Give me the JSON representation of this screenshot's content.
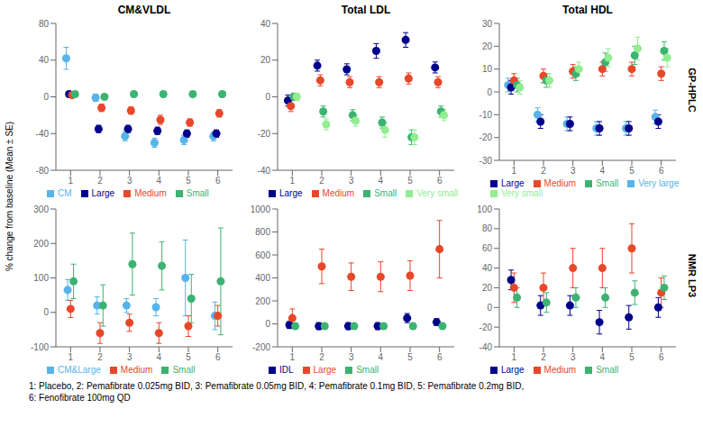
{
  "chart_data": [
    {
      "type": "scatter",
      "title": "CM&VLDL",
      "x": [
        1,
        2,
        3,
        4,
        5,
        6
      ],
      "xlim": [
        0.5,
        6.5
      ],
      "xticks": [
        1,
        2,
        3,
        4,
        5,
        6
      ],
      "ylim": [
        -80,
        80
      ],
      "yticks": [
        -80,
        -40,
        0,
        40,
        80
      ],
      "legend": "bottom",
      "marker": "circle",
      "series": [
        {
          "name": "CM",
          "color": "#56b4e9",
          "values": [
            42,
            -1,
            -43,
            -50,
            -47,
            -43
          ],
          "errors": [
            12,
            4,
            5,
            5,
            5,
            5
          ]
        },
        {
          "name": "Large",
          "color": "#00008b",
          "values": [
            3,
            -35,
            -35,
            -37,
            -40,
            -40
          ],
          "errors": [
            3,
            4,
            4,
            4,
            4,
            4
          ]
        },
        {
          "name": "Medium",
          "color": "#e8472a",
          "values": [
            2,
            -12,
            -15,
            -25,
            -28,
            -18
          ],
          "errors": [
            3,
            4,
            4,
            5,
            4,
            4
          ]
        },
        {
          "name": "Small",
          "color": "#3cb371",
          "values": [
            3,
            0,
            3,
            3,
            3,
            3
          ],
          "errors": [
            3,
            3,
            3,
            3,
            3,
            3
          ]
        }
      ]
    },
    {
      "type": "scatter",
      "title": "Total LDL",
      "x": [
        1,
        2,
        3,
        4,
        5,
        6
      ],
      "xlim": [
        0.5,
        6.5
      ],
      "xticks": [
        1,
        2,
        3,
        4,
        5,
        6
      ],
      "ylim": [
        -40,
        40
      ],
      "yticks": [
        -40,
        -20,
        0,
        20,
        40
      ],
      "legend": "bottom",
      "marker": "circle",
      "series": [
        {
          "name": "Large",
          "color": "#00008b",
          "values": [
            -2,
            17,
            15,
            25,
            31,
            16
          ],
          "errors": [
            3,
            3,
            3,
            4,
            4,
            3
          ]
        },
        {
          "name": "Medium",
          "color": "#e8472a",
          "values": [
            -5,
            9,
            8,
            8,
            10,
            8
          ],
          "errors": [
            3,
            3,
            3,
            3,
            3,
            3
          ]
        },
        {
          "name": "Small",
          "color": "#3cb371",
          "values": [
            0,
            -8,
            -10,
            -14,
            -22,
            -8
          ],
          "errors": [
            2,
            3,
            3,
            3,
            4,
            3
          ]
        },
        {
          "name": "Very small",
          "color": "#90ee90",
          "values": [
            0,
            -15,
            -13,
            -18,
            -22,
            -10
          ],
          "errors": [
            2,
            3,
            3,
            4,
            4,
            3
          ]
        }
      ]
    },
    {
      "type": "scatter",
      "title": "Total HDL",
      "x": [
        1,
        2,
        3,
        4,
        5,
        6
      ],
      "xlim": [
        0.5,
        6.5
      ],
      "xticks": [
        1,
        2,
        3,
        4,
        5,
        6
      ],
      "ylim": [
        -30,
        30
      ],
      "yticks": [
        -30,
        -20,
        -10,
        0,
        10,
        20,
        30
      ],
      "legend": "bottom",
      "marker": "circle",
      "series": [
        {
          "name": "Very large",
          "color": "#56b4e9",
          "values": [
            3,
            -10,
            -14,
            -16,
            -16,
            -11
          ],
          "errors": [
            3,
            3,
            3,
            3,
            3,
            3
          ]
        },
        {
          "name": "Large",
          "color": "#00008b",
          "values": [
            2,
            -13,
            -14,
            -16,
            -16,
            -13
          ],
          "errors": [
            3,
            3,
            3,
            3,
            3,
            3
          ]
        },
        {
          "name": "Medium",
          "color": "#e8472a",
          "values": [
            5,
            7,
            9,
            10,
            10,
            8
          ],
          "errors": [
            3,
            3,
            3,
            3,
            3,
            3
          ]
        },
        {
          "name": "Small",
          "color": "#3cb371",
          "values": [
            3,
            5,
            8,
            13,
            16,
            18
          ],
          "errors": [
            3,
            3,
            3,
            4,
            4,
            4
          ]
        },
        {
          "name": "Very small",
          "color": "#90ee90",
          "values": [
            2,
            5,
            10,
            15,
            19,
            15
          ],
          "errors": [
            3,
            3,
            3,
            4,
            5,
            4
          ]
        }
      ]
    },
    {
      "type": "scatter",
      "x": [
        1,
        2,
        3,
        4,
        5,
        6
      ],
      "xlim": [
        0.5,
        6.5
      ],
      "xticks": [
        1,
        2,
        3,
        4,
        5,
        6
      ],
      "ylim": [
        -100,
        300
      ],
      "yticks": [
        -100,
        0,
        100,
        200,
        300
      ],
      "legend": "bottom",
      "marker": "circle",
      "series": [
        {
          "name": "CM&Large",
          "color": "#56b4e9",
          "values": [
            65,
            20,
            20,
            15,
            100,
            -10
          ],
          "errors": [
            30,
            25,
            20,
            25,
            110,
            40
          ]
        },
        {
          "name": "Medium",
          "color": "#e8472a",
          "values": [
            10,
            -60,
            -30,
            -60,
            -40,
            -10
          ],
          "errors": [
            25,
            30,
            25,
            30,
            30,
            30
          ]
        },
        {
          "name": "Small",
          "color": "#3cb371",
          "values": [
            90,
            20,
            140,
            135,
            40,
            90
          ],
          "errors": [
            50,
            60,
            90,
            70,
            70,
            155
          ]
        }
      ]
    },
    {
      "type": "scatter",
      "x": [
        1,
        2,
        3,
        4,
        5,
        6
      ],
      "xlim": [
        0.5,
        6.5
      ],
      "xticks": [
        1,
        2,
        3,
        4,
        5,
        6
      ],
      "ylim": [
        -200,
        1000
      ],
      "yticks": [
        -200,
        0,
        200,
        400,
        600,
        800,
        1000
      ],
      "legend": "bottom",
      "marker": "circle",
      "series": [
        {
          "name": "IDL",
          "color": "#00008b",
          "values": [
            -10,
            -20,
            -20,
            -20,
            50,
            15
          ],
          "errors": [
            30,
            30,
            30,
            30,
            40,
            30
          ]
        },
        {
          "name": "Large",
          "color": "#e8472a",
          "values": [
            50,
            500,
            410,
            410,
            420,
            650
          ],
          "errors": [
            80,
            150,
            120,
            130,
            130,
            250
          ]
        },
        {
          "name": "Small",
          "color": "#3cb371",
          "values": [
            -20,
            -20,
            -20,
            -20,
            -20,
            -20
          ],
          "errors": [
            20,
            20,
            20,
            20,
            20,
            20
          ]
        }
      ]
    },
    {
      "type": "scatter",
      "x": [
        1,
        2,
        3,
        4,
        5,
        6
      ],
      "xlim": [
        0.5,
        6.5
      ],
      "xticks": [
        1,
        2,
        3,
        4,
        5,
        6
      ],
      "ylim": [
        -40,
        100
      ],
      "yticks": [
        -40,
        -20,
        0,
        20,
        40,
        60,
        80,
        100
      ],
      "legend": "bottom",
      "marker": "circle",
      "series": [
        {
          "name": "Large",
          "color": "#00008b",
          "values": [
            28,
            2,
            2,
            -15,
            -10,
            0
          ],
          "errors": [
            10,
            10,
            10,
            12,
            12,
            10
          ]
        },
        {
          "name": "Medium",
          "color": "#e8472a",
          "values": [
            20,
            20,
            40,
            40,
            60,
            15
          ],
          "errors": [
            15,
            15,
            20,
            20,
            25,
            15
          ]
        },
        {
          "name": "Small",
          "color": "#3cb371",
          "values": [
            10,
            5,
            10,
            10,
            15,
            20
          ],
          "errors": [
            10,
            10,
            10,
            10,
            12,
            12
          ]
        }
      ]
    }
  ],
  "ylabel": "% change from baseline (Mean ± SE)",
  "annotations": [
    "GP-HPLC",
    "NMR LP3"
  ],
  "footnote": "1: Placebo, 2: Pemafibrate 0.025mg BID, 3: Pemafibrate 0.05mg BID, 4: Pemafibrate 0.1mg BID, 5: Pemafibrate 0.2mg BID,\n6: Fenofibrate 100mg QD"
}
